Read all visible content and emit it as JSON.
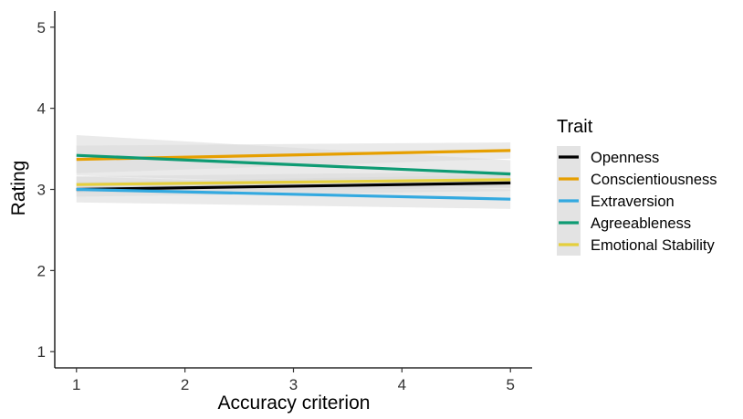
{
  "chart_data": {
    "type": "line",
    "title": "",
    "xlabel": "Accuracy criterion",
    "ylabel": "Rating",
    "xlim": [
      0.8,
      5.2
    ],
    "ylim": [
      0.8,
      5.2
    ],
    "xticks": [
      1,
      2,
      3,
      4,
      5
    ],
    "yticks": [
      1,
      2,
      3,
      4,
      5
    ],
    "xtick_labels": [
      "1",
      "2",
      "3",
      "4",
      "5"
    ],
    "ytick_labels": [
      "1",
      "2",
      "3",
      "4",
      "5"
    ],
    "grid": false,
    "legend_title": "Trait",
    "legend_position": "right",
    "confidence_band": true,
    "band_color": "#d9d9d9",
    "series": [
      {
        "name": "Openness",
        "color": "#000000",
        "x": [
          1,
          5
        ],
        "y": [
          3.0,
          3.08
        ],
        "ci_low": [
          2.91,
          2.98
        ],
        "ci_high": [
          3.09,
          3.18
        ]
      },
      {
        "name": "Conscientiousness",
        "color": "#e69f00",
        "x": [
          1,
          5
        ],
        "y": [
          3.37,
          3.48
        ],
        "ci_low": [
          3.2,
          3.38
        ],
        "ci_high": [
          3.54,
          3.58
        ]
      },
      {
        "name": "Extraversion",
        "color": "#33a9e0",
        "x": [
          1,
          5
        ],
        "y": [
          3.0,
          2.88
        ],
        "ci_low": [
          2.84,
          2.76
        ],
        "ci_high": [
          3.16,
          3.0
        ]
      },
      {
        "name": "Agreeableness",
        "color": "#0e9b73",
        "x": [
          1,
          5
        ],
        "y": [
          3.42,
          3.19
        ],
        "ci_low": [
          3.17,
          3.02
        ],
        "ci_high": [
          3.67,
          3.36
        ]
      },
      {
        "name": "Emotional Stability",
        "color": "#e4cf3c",
        "x": [
          1,
          5
        ],
        "y": [
          3.06,
          3.12
        ],
        "ci_low": [
          2.96,
          3.02
        ],
        "ci_high": [
          3.16,
          3.22
        ]
      }
    ]
  }
}
